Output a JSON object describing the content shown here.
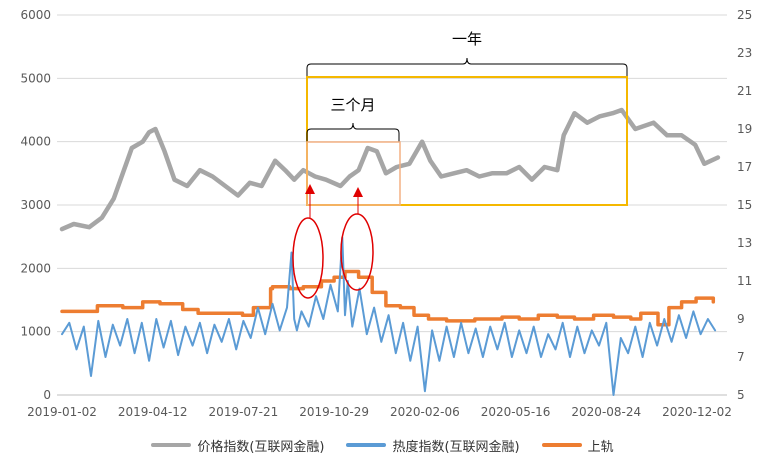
{
  "chart_data": {
    "type": "line",
    "x_ticks": [
      "2019-01-02",
      "2019-04-12",
      "2019-07-21",
      "2019-10-29",
      "2020-02-06",
      "2020-05-16",
      "2020-08-24",
      "2020-12-02"
    ],
    "y_left": {
      "ticks": [
        "0",
        "1000",
        "2000",
        "3000",
        "4000",
        "5000",
        "6000"
      ],
      "range": [
        0,
        6000
      ]
    },
    "y_right": {
      "ticks": [
        "5",
        "7",
        "9",
        "11",
        "13",
        "15",
        "17",
        "19",
        "21",
        "23",
        "25"
      ],
      "range": [
        5,
        25
      ]
    },
    "series": [
      {
        "name": "价格指数(互联网金融)",
        "axis": "left",
        "color": "#A6A6A6",
        "x": [
          "2019-01-02",
          "2019-01-15",
          "2019-02-01",
          "2019-02-15",
          "2019-02-28",
          "2019-03-10",
          "2019-03-20",
          "2019-04-01",
          "2019-04-08",
          "2019-04-15",
          "2019-04-25",
          "2019-05-06",
          "2019-05-20",
          "2019-06-03",
          "2019-06-17",
          "2019-07-01",
          "2019-07-15",
          "2019-07-28",
          "2019-08-10",
          "2019-08-25",
          "2019-09-05",
          "2019-09-15",
          "2019-09-25",
          "2019-10-08",
          "2019-10-20",
          "2019-11-05",
          "2019-11-15",
          "2019-11-25",
          "2019-12-05",
          "2019-12-15",
          "2019-12-25",
          "2020-01-06",
          "2020-01-20",
          "2020-02-03",
          "2020-02-12",
          "2020-02-24",
          "2020-03-09",
          "2020-03-23",
          "2020-04-06",
          "2020-04-20",
          "2020-05-06",
          "2020-05-20",
          "2020-06-03",
          "2020-06-17",
          "2020-07-01",
          "2020-07-08",
          "2020-07-20",
          "2020-08-03",
          "2020-08-17",
          "2020-08-31",
          "2020-09-10",
          "2020-09-25",
          "2020-10-15",
          "2020-10-30",
          "2020-11-15",
          "2020-11-30",
          "2020-12-10",
          "2020-12-25"
        ],
        "values": [
          2620,
          2700,
          2650,
          2800,
          3100,
          3500,
          3900,
          4000,
          4150,
          4200,
          3850,
          3400,
          3300,
          3550,
          3450,
          3300,
          3150,
          3350,
          3300,
          3700,
          3550,
          3400,
          3550,
          3450,
          3400,
          3300,
          3450,
          3550,
          3900,
          3850,
          3500,
          3600,
          3650,
          4000,
          3700,
          3450,
          3500,
          3550,
          3450,
          3500,
          3500,
          3600,
          3400,
          3600,
          3550,
          4100,
          4450,
          4300,
          4400,
          4450,
          4500,
          4200,
          4300,
          4100,
          4100,
          3950,
          3650,
          3750
        ]
      },
      {
        "name": "热度指数(互联网金融)",
        "axis": "right",
        "color": "#5B9BD5",
        "x": [
          "2019-01-02",
          "2019-01-10",
          "2019-01-18",
          "2019-01-26",
          "2019-02-03",
          "2019-02-11",
          "2019-02-19",
          "2019-02-27",
          "2019-03-07",
          "2019-03-15",
          "2019-03-23",
          "2019-03-31",
          "2019-04-08",
          "2019-04-16",
          "2019-04-24",
          "2019-05-02",
          "2019-05-10",
          "2019-05-18",
          "2019-05-26",
          "2019-06-03",
          "2019-06-11",
          "2019-06-19",
          "2019-06-27",
          "2019-07-05",
          "2019-07-13",
          "2019-07-21",
          "2019-07-29",
          "2019-08-06",
          "2019-08-14",
          "2019-08-22",
          "2019-08-30",
          "2019-09-07",
          "2019-09-12",
          "2019-09-15",
          "2019-09-18",
          "2019-09-23",
          "2019-10-01",
          "2019-10-09",
          "2019-10-17",
          "2019-10-25",
          "2019-11-02",
          "2019-11-07",
          "2019-11-10",
          "2019-11-13",
          "2019-11-18",
          "2019-11-26",
          "2019-12-04",
          "2019-12-12",
          "2019-12-20",
          "2019-12-28",
          "2020-01-05",
          "2020-01-13",
          "2020-01-21",
          "2020-01-29",
          "2020-02-06",
          "2020-02-14",
          "2020-02-22",
          "2020-03-01",
          "2020-03-09",
          "2020-03-17",
          "2020-03-25",
          "2020-04-02",
          "2020-04-10",
          "2020-04-18",
          "2020-04-26",
          "2020-05-04",
          "2020-05-12",
          "2020-05-20",
          "2020-05-28",
          "2020-06-05",
          "2020-06-13",
          "2020-06-21",
          "2020-06-29",
          "2020-07-07",
          "2020-07-15",
          "2020-07-23",
          "2020-07-31",
          "2020-08-08",
          "2020-08-16",
          "2020-08-24",
          "2020-09-01",
          "2020-09-09",
          "2020-09-17",
          "2020-09-25",
          "2020-10-03",
          "2020-10-11",
          "2020-10-19",
          "2020-10-27",
          "2020-11-04",
          "2020-11-12",
          "2020-11-20",
          "2020-11-28",
          "2020-12-06",
          "2020-12-14",
          "2020-12-22"
        ],
        "values": [
          8.2,
          8.8,
          7.4,
          8.6,
          6.0,
          8.9,
          7.0,
          8.7,
          7.6,
          9.0,
          7.2,
          8.8,
          6.8,
          9.0,
          7.5,
          8.9,
          7.1,
          8.6,
          7.6,
          8.8,
          7.2,
          8.7,
          7.8,
          9.0,
          7.4,
          8.9,
          8.0,
          9.6,
          8.2,
          9.8,
          8.4,
          9.6,
          12.5,
          9.0,
          8.4,
          9.4,
          8.6,
          10.2,
          9.0,
          10.8,
          9.4,
          13.3,
          9.2,
          11.0,
          8.6,
          10.6,
          8.2,
          9.6,
          7.8,
          9.2,
          7.2,
          8.8,
          6.8,
          8.6,
          5.2,
          8.4,
          6.8,
          8.6,
          7.0,
          8.8,
          7.2,
          8.5,
          7.0,
          8.6,
          7.4,
          8.8,
          7.0,
          8.4,
          7.2,
          8.6,
          7.0,
          8.2,
          7.4,
          8.8,
          7.0,
          8.6,
          7.2,
          8.4,
          7.6,
          8.8,
          5.0,
          8.0,
          7.2,
          8.6,
          7.0,
          8.8,
          7.6,
          9.0,
          7.8,
          9.2,
          8.0,
          9.4,
          8.2,
          9.0,
          8.4
        ]
      },
      {
        "name": "上轨",
        "axis": "right",
        "color": "#ED7D31",
        "x": [
          "2019-01-02",
          "2019-01-20",
          "2019-02-10",
          "2019-03-10",
          "2019-04-01",
          "2019-04-20",
          "2019-05-15",
          "2019-06-01",
          "2019-07-01",
          "2019-07-20",
          "2019-08-01",
          "2019-08-20",
          "2019-08-22",
          "2019-09-10",
          "2019-09-25",
          "2019-10-15",
          "2019-10-29",
          "2019-11-10",
          "2019-11-25",
          "2019-12-10",
          "2019-12-25",
          "2020-01-10",
          "2020-01-25",
          "2020-02-10",
          "2020-03-01",
          "2020-04-01",
          "2020-05-01",
          "2020-05-20",
          "2020-06-10",
          "2020-07-01",
          "2020-07-20",
          "2020-08-10",
          "2020-09-01",
          "2020-09-20",
          "2020-10-01",
          "2020-10-20",
          "2020-11-01",
          "2020-11-15",
          "2020-12-01",
          "2020-12-20"
        ],
        "values": [
          9.4,
          9.4,
          9.7,
          9.6,
          9.9,
          9.8,
          9.5,
          9.3,
          9.3,
          9.2,
          9.6,
          10.6,
          10.7,
          10.6,
          10.7,
          11.0,
          11.2,
          11.5,
          11.2,
          10.4,
          9.7,
          9.6,
          9.2,
          9.0,
          8.9,
          9.0,
          9.1,
          9.0,
          9.2,
          9.1,
          9.0,
          9.2,
          9.1,
          9.0,
          9.3,
          8.7,
          9.6,
          9.9,
          10.1,
          9.9
        ]
      }
    ],
    "annotations": [
      "一年",
      "三个月"
    ],
    "legend_position": "bottom",
    "grid": true
  }
}
